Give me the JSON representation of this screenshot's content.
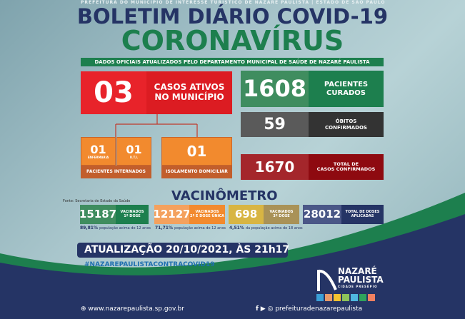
{
  "header": {
    "top_line": "PREFEITURA DO MUNICÍPIO DE INTERESSE TURÍSTICO DE NAZARÉ PAULISTA  |  ESTADO DE SÃO PAULO",
    "title": "BOLETIM DIÁRIO COVID-19",
    "subtitle": "CORONAVÍRUS",
    "strip": "DADOS OFICIAIS ATUALIZADOS PELO DEPARTAMENTO MUNICIPAL DE SAÚDE DE NAZARÉ PAULISTA"
  },
  "active": {
    "value": "03",
    "label1": "CASOS ATIVOS",
    "label2": "NO MUNICÍPIO"
  },
  "hospital": {
    "ward_value": "01",
    "ward_label": "ENFERMARIA",
    "icu_value": "01",
    "icu_label": "U.T.I.",
    "label": "PACIENTES INTERNADOS"
  },
  "isolation": {
    "value": "01",
    "label": "ISOLAMENTO DOMICILIAR"
  },
  "recovered": {
    "value": "1608",
    "label1": "PACIENTES",
    "label2": "CURADOS"
  },
  "deaths": {
    "value": "59",
    "label1": "ÓBITOS",
    "label2": "CONFIRMADOS"
  },
  "total": {
    "value": "1670",
    "label1": "TOTAL DE",
    "label2": "CASOS CONFIRMADOS"
  },
  "vaccine": {
    "title": "VACINÔMETRO",
    "source": "Fonte: Secretaria de Estado da Saúde",
    "items": [
      {
        "value": "15187",
        "label1": "VACINADOS",
        "label2": "1ª DOSE",
        "pct": "89,81%",
        "pct_text": "população acima de 12 anos"
      },
      {
        "value": "12127",
        "label1": "VACINADOS",
        "label2": "2ª E DOSE ÚNICA",
        "pct": "71,71%",
        "pct_text": "população acima de 12 anos"
      },
      {
        "value": "698",
        "label1": "VACINADOS",
        "label2": "3ª DOSE",
        "pct": "4,51%",
        "pct_text": "da população acima de 18 anos"
      },
      {
        "value": "28012",
        "label1": "TOTAL DE DOSES",
        "label2": "APLICADAS"
      }
    ]
  },
  "update": "ATUALIZAÇÃO  20/10/2021, ÀS 21h17",
  "hashtag": "#NAZAREPAULISTACONTRACOVID19",
  "logo": {
    "line1": "NAZARÉ",
    "line2": "PAULISTA",
    "tagline": "CIDADE PRESÉPIO"
  },
  "footer": {
    "website": "www.nazarepaulista.sp.gov.br",
    "social": "prefeituradenazarepaulista"
  },
  "colors": {
    "navy": "#253465",
    "green": "#1d7f4e",
    "red": "#e11f26",
    "orange": "#f28a2e",
    "gray": "#3a3a3a",
    "darkred": "#9c1116"
  }
}
